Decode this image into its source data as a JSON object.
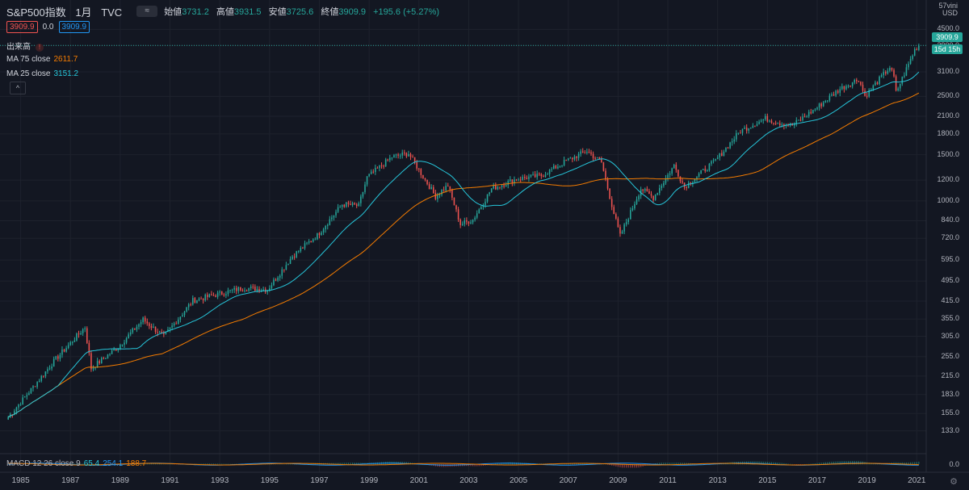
{
  "header": {
    "symbol": "S&P500指数",
    "interval": "1月",
    "source": "TVC",
    "compare_icon": "≈",
    "open_label": "始値",
    "open": "3731.2",
    "high_label": "高値",
    "high": "3931.5",
    "low_label": "安値",
    "low": "3725.6",
    "close_label": "終値",
    "close": "3909.9",
    "change": "+195.6 (+5.27%)"
  },
  "toolbar_row": {
    "sell": "3909.9",
    "spread": "0.0",
    "buy": "3909.9"
  },
  "indicators": {
    "volume_label": "出来高",
    "warn_icon": "!",
    "ma75_label": "MA 75 close",
    "ma75_value": "2611.7",
    "ma25_label": "MA 25 close",
    "ma25_value": "3151.2",
    "collapse_icon": "^",
    "macd_label": "MACD 12 26 close 9",
    "macd_v1": "65.4",
    "macd_v2": "254.1",
    "macd_v3": "188.7"
  },
  "axis": {
    "unit_top": "57vini",
    "currency": "USD",
    "price_tag": "3909.9",
    "countdown": "15d 15h",
    "macd_zero": "0.0",
    "settings_icon": "gear-icon"
  },
  "colors": {
    "up": "#26a69a",
    "down": "#ef5350",
    "ma75": "#f57c00",
    "ma25": "#26c6da",
    "background": "#131722"
  },
  "chart_data": {
    "type": "candlestick",
    "scale": "log",
    "interval": "monthly",
    "y_ticks": [
      4500,
      3900,
      3100,
      2500,
      2100,
      1800,
      1500,
      1200,
      1000,
      840,
      720,
      595,
      495,
      415,
      355,
      305,
      255,
      215,
      183,
      155,
      133
    ],
    "x_ticks": [
      "1985",
      "1987",
      "1989",
      "1991",
      "1993",
      "1995",
      "1997",
      "1999",
      "2001",
      "2003",
      "2005",
      "2007",
      "2009",
      "2011",
      "2013",
      "2015",
      "2017",
      "2019",
      "2021"
    ],
    "ylim": [
      112,
      5200
    ],
    "key_points": [
      {
        "date": "1984-07",
        "close": 150
      },
      {
        "date": "1985-06",
        "close": 191
      },
      {
        "date": "1986-06",
        "close": 250
      },
      {
        "date": "1987-08",
        "close": 330
      },
      {
        "date": "1987-11",
        "close": 230
      },
      {
        "date": "1988-12",
        "close": 278
      },
      {
        "date": "1989-12",
        "close": 353
      },
      {
        "date": "1990-10",
        "close": 304
      },
      {
        "date": "1991-12",
        "close": 417
      },
      {
        "date": "1993-12",
        "close": 466
      },
      {
        "date": "1994-12",
        "close": 459
      },
      {
        "date": "1995-12",
        "close": 616
      },
      {
        "date": "1996-12",
        "close": 740
      },
      {
        "date": "1997-12",
        "close": 970
      },
      {
        "date": "1998-08",
        "close": 957
      },
      {
        "date": "1998-12",
        "close": 1229
      },
      {
        "date": "1999-12",
        "close": 1469
      },
      {
        "date": "2000-08",
        "close": 1517
      },
      {
        "date": "2001-09",
        "close": 1040
      },
      {
        "date": "2002-03",
        "close": 1147
      },
      {
        "date": "2002-09",
        "close": 815
      },
      {
        "date": "2003-03",
        "close": 848
      },
      {
        "date": "2003-12",
        "close": 1112
      },
      {
        "date": "2004-12",
        "close": 1212
      },
      {
        "date": "2005-12",
        "close": 1248
      },
      {
        "date": "2006-12",
        "close": 1418
      },
      {
        "date": "2007-10",
        "close": 1549
      },
      {
        "date": "2008-05",
        "close": 1400
      },
      {
        "date": "2008-11",
        "close": 896
      },
      {
        "date": "2009-02",
        "close": 735
      },
      {
        "date": "2009-12",
        "close": 1115
      },
      {
        "date": "2010-06",
        "close": 1030
      },
      {
        "date": "2011-04",
        "close": 1363
      },
      {
        "date": "2011-09",
        "close": 1131
      },
      {
        "date": "2012-12",
        "close": 1426
      },
      {
        "date": "2013-12",
        "close": 1848
      },
      {
        "date": "2014-12",
        "close": 2058
      },
      {
        "date": "2015-08",
        "close": 1972
      },
      {
        "date": "2016-01",
        "close": 1940
      },
      {
        "date": "2016-12",
        "close": 2238
      },
      {
        "date": "2017-12",
        "close": 2673
      },
      {
        "date": "2018-09",
        "close": 2913
      },
      {
        "date": "2018-12",
        "close": 2506
      },
      {
        "date": "2019-12",
        "close": 3230
      },
      {
        "date": "2020-02",
        "close": 2954
      },
      {
        "date": "2020-03",
        "close": 2584
      },
      {
        "date": "2020-12",
        "close": 3756
      },
      {
        "date": "2021-02",
        "close": 3909.9
      }
    ]
  }
}
